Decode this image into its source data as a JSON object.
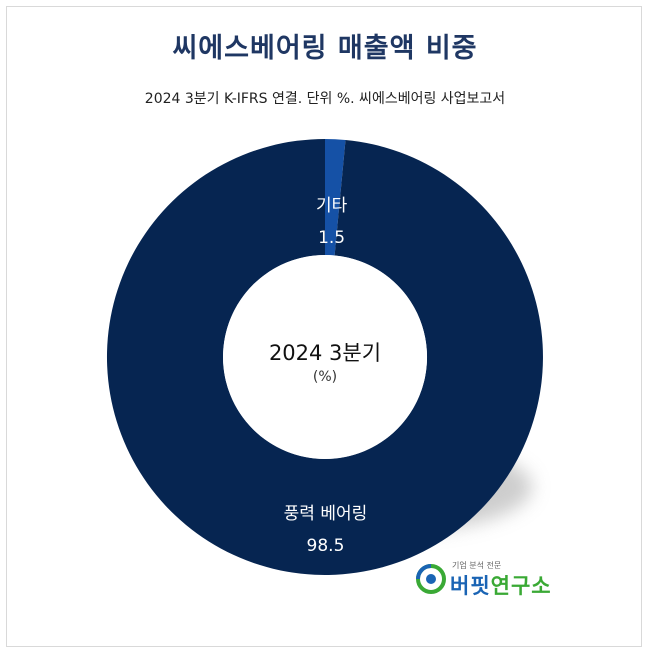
{
  "title": "씨에스베어링 매출액 비중",
  "subtitle": "2024 3분기 K-IFRS 연결. 단위 %. 씨에스베어링 사업보고서",
  "center": {
    "line1": "2024 3분기",
    "line2": "(%)"
  },
  "logo": {
    "tagline": "기업 분석 전문",
    "name_part1": "버핏",
    "name_part2": "연구소"
  },
  "chart_data": {
    "type": "pie",
    "title": "씨에스베어링 매출액 비중",
    "subtitle": "2024 3분기 K-IFRS 연결. 단위 %. 씨에스베어링 사업보고서",
    "center_label": "2024 3분기 (%)",
    "donut": true,
    "slices": [
      {
        "label": "기타",
        "value": 1.5,
        "color": "#1551a6"
      },
      {
        "label": "풍력 베어링",
        "value": 98.5,
        "color": "#062551"
      }
    ]
  }
}
